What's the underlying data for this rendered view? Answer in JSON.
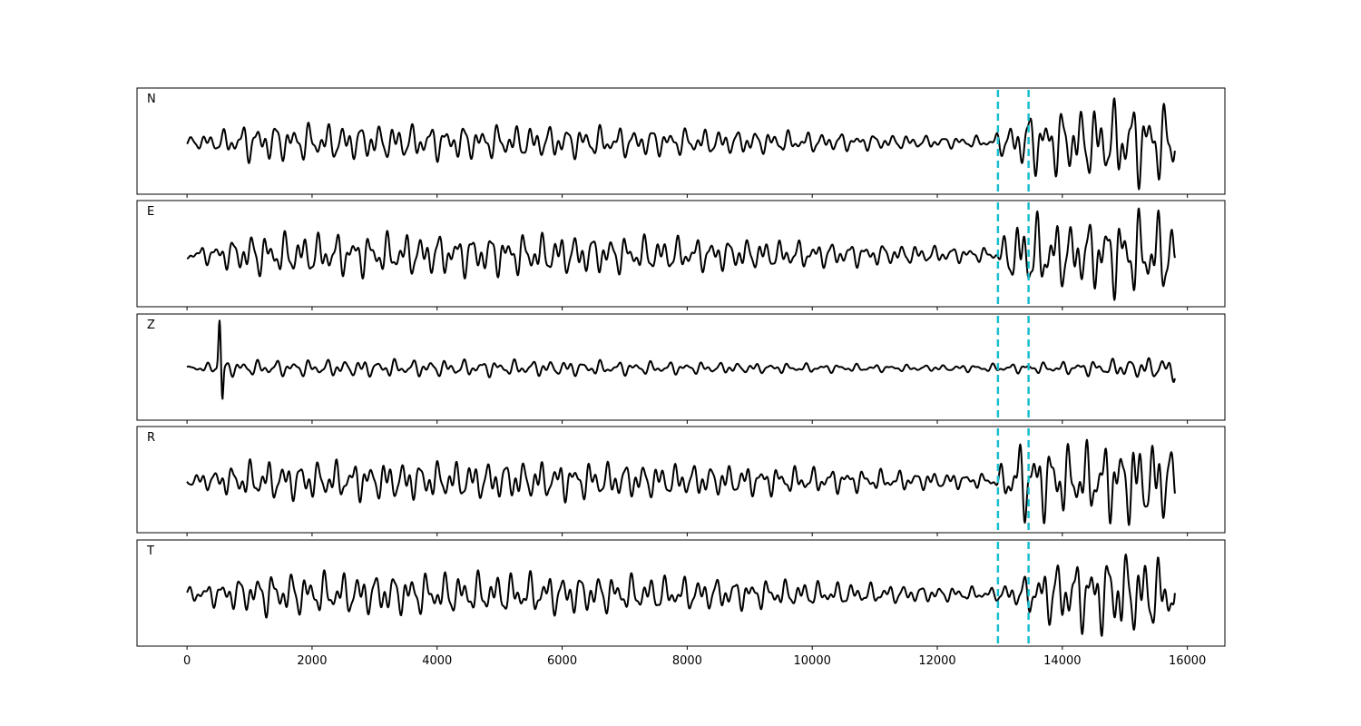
{
  "chart_data": {
    "type": "line",
    "title": "",
    "xlabel": "",
    "ylabel": "",
    "xlim": [
      -800,
      16600
    ],
    "x_ticks": [
      0,
      2000,
      4000,
      6000,
      8000,
      10000,
      12000,
      14000,
      16000
    ],
    "x_tick_labels": [
      "0",
      "2000",
      "4000",
      "6000",
      "8000",
      "10000",
      "12000",
      "14000",
      "16000"
    ],
    "n_samples": 15800,
    "markers_x": [
      12970,
      13460
    ],
    "colors": {
      "trace": "#000000",
      "marker": "#17becf"
    },
    "grid": false,
    "panels": [
      {
        "label": "N",
        "amplitude_profile": [
          [
            0,
            0.12
          ],
          [
            500,
            0.25
          ],
          [
            1000,
            0.45
          ],
          [
            3000,
            0.42
          ],
          [
            6000,
            0.38
          ],
          [
            9000,
            0.28
          ],
          [
            12000,
            0.14
          ],
          [
            12900,
            0.14
          ],
          [
            13000,
            0.3
          ],
          [
            13500,
            0.75
          ],
          [
            14200,
            0.8
          ],
          [
            15100,
            1.0
          ],
          [
            15800,
            0.85
          ]
        ],
        "seed": 11
      },
      {
        "label": "E",
        "amplitude_profile": [
          [
            0,
            0.12
          ],
          [
            500,
            0.28
          ],
          [
            1000,
            0.5
          ],
          [
            6000,
            0.48
          ],
          [
            9000,
            0.36
          ],
          [
            12000,
            0.2
          ],
          [
            12900,
            0.16
          ],
          [
            13000,
            0.25
          ],
          [
            13300,
            0.95
          ],
          [
            14200,
            0.75
          ],
          [
            15100,
            1.0
          ],
          [
            15800,
            0.95
          ]
        ],
        "seed": 23
      },
      {
        "label": "Z",
        "amplitude_profile": [
          [
            0,
            0.05
          ],
          [
            700,
            0.18
          ],
          [
            3000,
            0.2
          ],
          [
            6000,
            0.18
          ],
          [
            9000,
            0.12
          ],
          [
            12000,
            0.07
          ],
          [
            13000,
            0.1
          ],
          [
            14000,
            0.14
          ],
          [
            15400,
            0.25
          ],
          [
            15800,
            0.3
          ]
        ],
        "spike": {
          "x": 520,
          "amplitude": 1.0
        },
        "seed": 37
      },
      {
        "label": "R",
        "amplitude_profile": [
          [
            0,
            0.12
          ],
          [
            500,
            0.28
          ],
          [
            1000,
            0.45
          ],
          [
            6000,
            0.45
          ],
          [
            9000,
            0.35
          ],
          [
            12000,
            0.2
          ],
          [
            12900,
            0.16
          ],
          [
            13000,
            0.3
          ],
          [
            13300,
            0.95
          ],
          [
            14200,
            0.8
          ],
          [
            15100,
            1.0
          ],
          [
            15800,
            0.9
          ]
        ],
        "seed": 51
      },
      {
        "label": "T",
        "amplitude_profile": [
          [
            0,
            0.15
          ],
          [
            500,
            0.3
          ],
          [
            1200,
            0.5
          ],
          [
            6000,
            0.48
          ],
          [
            9000,
            0.35
          ],
          [
            12000,
            0.18
          ],
          [
            12900,
            0.15
          ],
          [
            13400,
            0.4
          ],
          [
            13700,
            0.7
          ],
          [
            15000,
            1.0
          ],
          [
            15800,
            0.8
          ]
        ],
        "seed": 67
      }
    ]
  }
}
